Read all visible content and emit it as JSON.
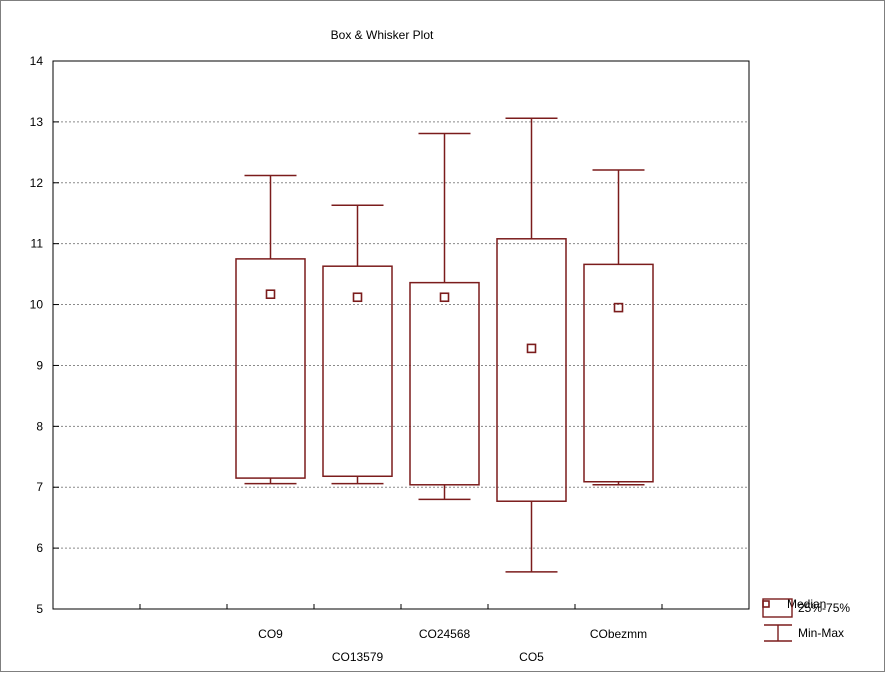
{
  "chart_data": {
    "type": "boxplot",
    "title": "Box & Whisker Plot",
    "xlabel": "",
    "ylabel": "",
    "ylim": [
      5,
      14
    ],
    "yticks": [
      5,
      6,
      7,
      8,
      9,
      10,
      11,
      12,
      13,
      14
    ],
    "grid": true,
    "legend_position": "bottom-right",
    "color": "#7b1c1c",
    "categories": [
      "CO9",
      "CO13579",
      "CO24568",
      "CO5",
      "CObezmm"
    ],
    "series": [
      {
        "category": "CO9",
        "min": 7.06,
        "q1": 7.15,
        "median": 10.17,
        "q3": 10.75,
        "max": 12.12
      },
      {
        "category": "CO13579",
        "min": 7.06,
        "q1": 7.18,
        "median": 10.12,
        "q3": 10.63,
        "max": 11.63
      },
      {
        "category": "CO24568",
        "min": 6.8,
        "q1": 7.04,
        "median": 10.12,
        "q3": 10.36,
        "max": 12.81
      },
      {
        "category": "CO5",
        "min": 5.61,
        "q1": 6.77,
        "median": 9.28,
        "q3": 11.08,
        "max": 13.06
      },
      {
        "category": "CObezmm",
        "min": 7.04,
        "q1": 7.09,
        "median": 9.95,
        "q3": 10.66,
        "max": 12.21
      }
    ],
    "legend": {
      "median": "Median",
      "box": "25%-75%",
      "whisker": "Min-Max"
    }
  }
}
